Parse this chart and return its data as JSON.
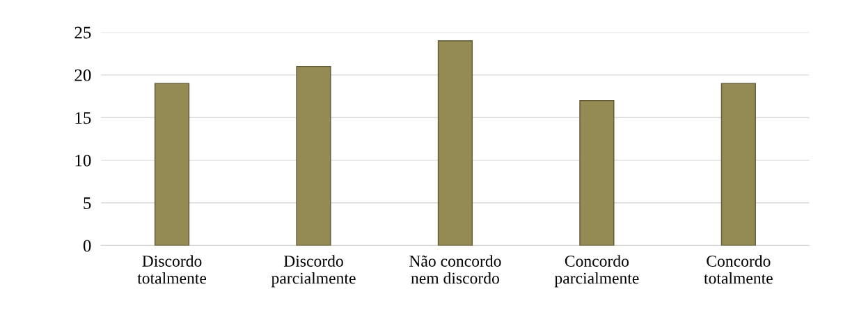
{
  "chart_data": {
    "type": "bar",
    "categories": [
      "Discordo\ntotalmente",
      "Discordo\nparcialmente",
      "Não concordo\nnem discordo",
      "Concordo\nparcialmente",
      "Concordo\ntotalmente"
    ],
    "values": [
      19,
      21,
      24,
      17,
      19
    ],
    "color": "#948a54",
    "ylim": [
      0,
      25
    ],
    "yticks": [
      0,
      5,
      10,
      15,
      20,
      25
    ],
    "grid": "y"
  }
}
